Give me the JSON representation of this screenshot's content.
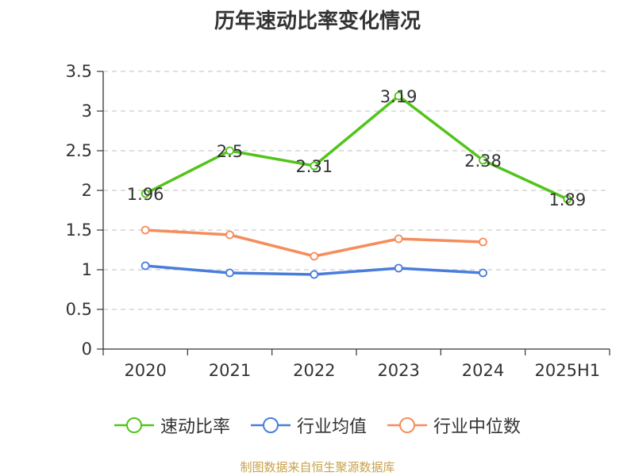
{
  "chart_data": {
    "type": "line",
    "title": "历年速动比率变化情况",
    "categories": [
      "2020",
      "2021",
      "2022",
      "2023",
      "2024",
      "2025H1"
    ],
    "ylim": [
      0,
      3.5
    ],
    "yticks": [
      "0",
      "0.5",
      "1",
      "1.5",
      "2",
      "2.5",
      "3",
      "3.5"
    ],
    "grid": true,
    "legend_position": "bottom",
    "series": [
      {
        "name": "速动比率",
        "color": "#52c41a",
        "values": [
          1.96,
          2.5,
          2.31,
          3.19,
          2.38,
          1.89
        ],
        "labels": [
          "1.96",
          "2.5",
          "2.31",
          "3.19",
          "2.38",
          "1.89"
        ]
      },
      {
        "name": "行业均值",
        "color": "#4a7ddb",
        "values": [
          1.05,
          0.96,
          0.94,
          1.02,
          0.96,
          null
        ]
      },
      {
        "name": "行业中位数",
        "color": "#f58d5b",
        "values": [
          1.5,
          1.44,
          1.17,
          1.39,
          1.35,
          null
        ]
      }
    ]
  },
  "source": "制图数据来自恒生聚源数据库"
}
